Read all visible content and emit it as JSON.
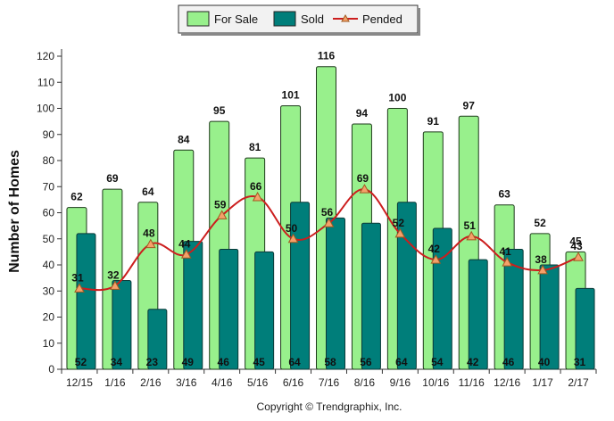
{
  "chart_data": {
    "type": "bar",
    "title": "",
    "xlabel": "",
    "ylabel": "Number of Homes",
    "ylim": [
      0,
      120
    ],
    "yticks": [
      0,
      10,
      20,
      30,
      40,
      50,
      60,
      70,
      80,
      90,
      100,
      110,
      120
    ],
    "categories": [
      "12/15",
      "1/16",
      "2/16",
      "3/16",
      "4/16",
      "5/16",
      "6/16",
      "7/16",
      "8/16",
      "9/16",
      "10/16",
      "11/16",
      "12/16",
      "1/17",
      "2/17"
    ],
    "series": [
      {
        "name": "For Sale",
        "kind": "bar",
        "color": "#98f08c",
        "values": [
          62,
          69,
          64,
          84,
          95,
          81,
          101,
          116,
          94,
          100,
          91,
          97,
          63,
          52,
          45
        ]
      },
      {
        "name": "Sold",
        "kind": "bar",
        "color": "#007e7a",
        "values": [
          52,
          34,
          23,
          49,
          46,
          45,
          64,
          58,
          56,
          64,
          54,
          42,
          46,
          40,
          31
        ]
      },
      {
        "name": "Pended",
        "kind": "line",
        "color": "#cc1e1e",
        "marker_color": "#f5a06a",
        "values": [
          31,
          32,
          48,
          44,
          59,
          66,
          50,
          56,
          69,
          52,
          42,
          51,
          41,
          38,
          43
        ]
      }
    ],
    "legend_position": "top-center",
    "grid": false
  },
  "footer": {
    "copyright": "Copyright © Trendgraphix, Inc."
  }
}
